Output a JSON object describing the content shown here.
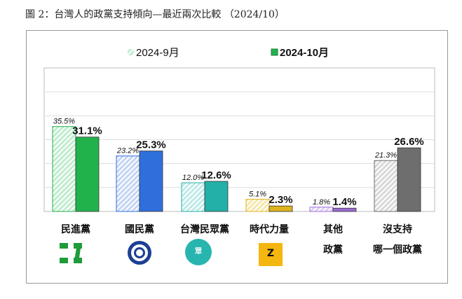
{
  "title": "圖 2：台灣人的政黨支持傾向—最近兩次比較 （2024/10）",
  "chart_data": {
    "type": "bar",
    "title": "圖 2：台灣人的政黨支持傾向—最近兩次比較 （2024/10）",
    "categories": [
      [
        "民進黨"
      ],
      [
        "國民黨"
      ],
      [
        "台灣民眾黨"
      ],
      [
        "時代力量"
      ],
      [
        "其他",
        "政黨"
      ],
      [
        "沒支持",
        "哪一個政黨"
      ]
    ],
    "series": [
      {
        "name": "2024-9月",
        "values": [
          35.5,
          23.2,
          12.0,
          5.1,
          1.8,
          21.3
        ],
        "labels": [
          "35.5%",
          "23.2%",
          "12.0%",
          "5.1%",
          "1.8%",
          "21.3%"
        ]
      },
      {
        "name": "2024-10月",
        "values": [
          31.1,
          25.3,
          12.6,
          2.3,
          1.4,
          26.6
        ],
        "labels": [
          "31.1%",
          "25.3%",
          "12.6%",
          "2.3%",
          "1.4%",
          "26.6%"
        ]
      }
    ],
    "colors": [
      "#22b24c",
      "#2f6fdc",
      "#23b0a8",
      "#e0b31c",
      "#9b6bd4",
      "#6e6e6e"
    ],
    "light_colors": [
      "#c6efd3",
      "#c9d8f5",
      "#c4ece8",
      "#f7e7a8",
      "#e2d3f5",
      "#dddddd"
    ],
    "ylim": [
      0,
      60
    ],
    "grid": true,
    "legend": "top",
    "logos": [
      "民進黨",
      "國民黨",
      "台灣民眾黨",
      "時代力量"
    ]
  }
}
